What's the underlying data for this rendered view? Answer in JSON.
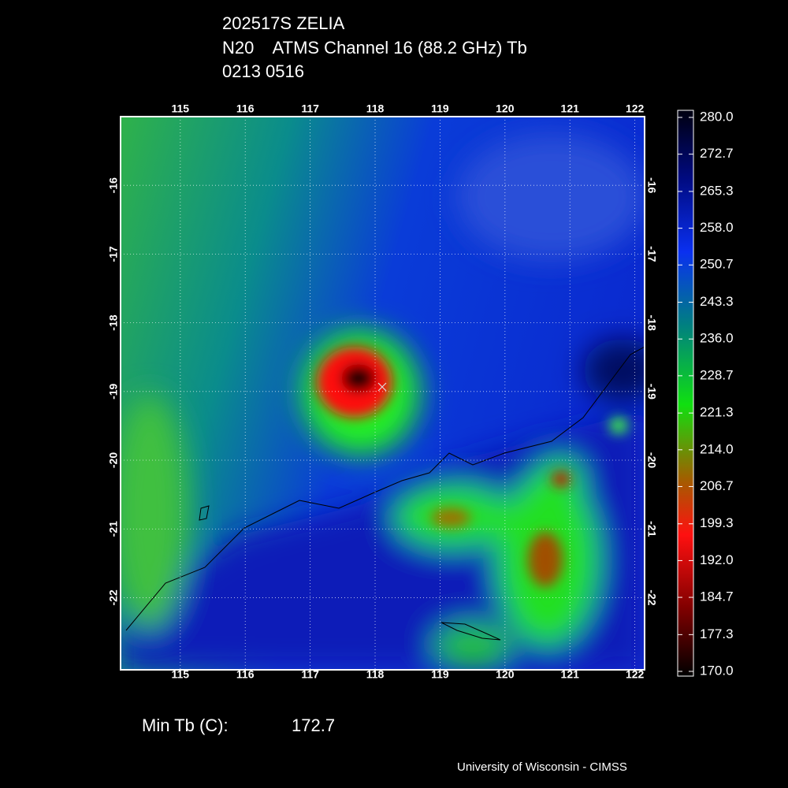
{
  "header": {
    "lines": [
      "202517S ZELIA",
      "N20    ATMS Channel 16 (88.2 GHz) Tb",
      "0213 0516"
    ]
  },
  "map": {
    "lon_range": [
      114.08,
      122.15
    ],
    "lat_range": [
      -15.0,
      -23.05
    ],
    "lon_ticks": [
      115,
      116,
      117,
      118,
      119,
      120,
      121,
      122
    ],
    "lat_ticks": [
      -16,
      -17,
      -18,
      -19,
      -20,
      -21,
      -22
    ]
  },
  "colorbar": {
    "range": [
      170,
      280
    ],
    "ticks": [
      {
        "value": 280,
        "label": "280.0"
      },
      {
        "value": 272.7,
        "label": "272.7"
      },
      {
        "value": 265.3,
        "label": "265.3"
      },
      {
        "value": 258,
        "label": "258.0"
      },
      {
        "value": 250.7,
        "label": "250.7"
      },
      {
        "value": 243.3,
        "label": "243.3"
      },
      {
        "value": 236,
        "label": "236.0"
      },
      {
        "value": 228.7,
        "label": "228.7"
      },
      {
        "value": 221.3,
        "label": "221.3"
      },
      {
        "value": 214,
        "label": "214.0"
      },
      {
        "value": 206.7,
        "label": "206.7"
      },
      {
        "value": 199.3,
        "label": "199.3"
      },
      {
        "value": 192,
        "label": "192.0"
      },
      {
        "value": 184.7,
        "label": "184.7"
      },
      {
        "value": 177.3,
        "label": "177.3"
      },
      {
        "value": 170,
        "label": "170.0"
      }
    ]
  },
  "footer": {
    "min_label": "Min Tb (C):",
    "min_value": 172.7,
    "credit": "University of Wisconsin - CIMSS"
  }
}
